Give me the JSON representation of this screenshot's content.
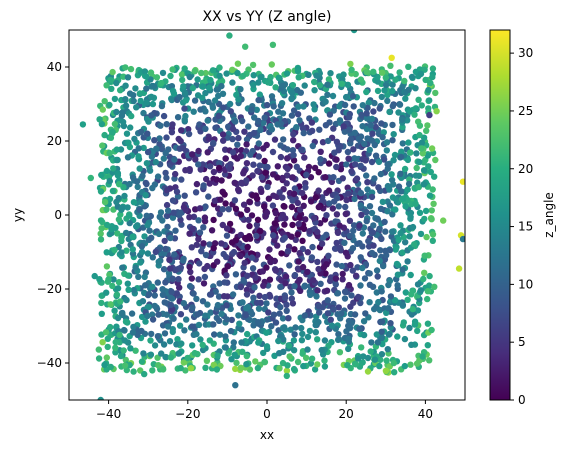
{
  "chart_data": {
    "type": "scatter",
    "title": "XX vs YY (Z angle)",
    "xlabel": "xx",
    "ylabel": "yy",
    "xlim": [
      -50,
      50
    ],
    "ylim": [
      -50,
      50
    ],
    "xticks": [
      -40,
      -20,
      0,
      20,
      40
    ],
    "yticks": [
      -40,
      -20,
      0,
      20,
      40
    ],
    "grid": false,
    "colormap": "viridis",
    "colorbar": {
      "label": "z_angle",
      "range": [
        0,
        32
      ],
      "ticks": [
        0,
        5,
        10,
        15,
        20,
        25,
        30
      ]
    },
    "series": [
      {
        "description_of_distribution": "",
        "core_region": {
          "x": [
            -42,
            42
          ],
          "y": [
            -42,
            40
          ]
        },
        "points": [
          {
            "x": -46.5,
            "y": 24.5,
            "z": 18
          },
          {
            "x": -44.5,
            "y": 10.0,
            "z": 21
          },
          {
            "x": -42.0,
            "y": -50.0,
            "z": 16
          },
          {
            "x": -43.5,
            "y": -16.5,
            "z": 17
          },
          {
            "x": -8.0,
            "y": -46.0,
            "z": 12
          },
          {
            "x": -9.5,
            "y": 48.5,
            "z": 20
          },
          {
            "x": -5.5,
            "y": 45.5,
            "z": 22
          },
          {
            "x": 1.5,
            "y": 46.0,
            "z": 22
          },
          {
            "x": 22.0,
            "y": 50.0,
            "z": 17
          },
          {
            "x": 31.5,
            "y": 42.5,
            "z": 31
          },
          {
            "x": 41.0,
            "y": 27.0,
            "z": 6
          },
          {
            "x": 42.5,
            "y": 33.0,
            "z": 23
          },
          {
            "x": 44.5,
            "y": -1.5,
            "z": 25
          },
          {
            "x": 48.5,
            "y": -14.5,
            "z": 29
          },
          {
            "x": 49.5,
            "y": 9.0,
            "z": 31
          },
          {
            "x": 49.0,
            "y": -5.5,
            "z": 30
          },
          {
            "x": 49.5,
            "y": -6.5,
            "z": 13
          },
          {
            "x": 5.0,
            "y": -43.5,
            "z": 20
          },
          {
            "x": -31.0,
            "y": -43.0,
            "z": 19
          }
        ]
      }
    ]
  }
}
